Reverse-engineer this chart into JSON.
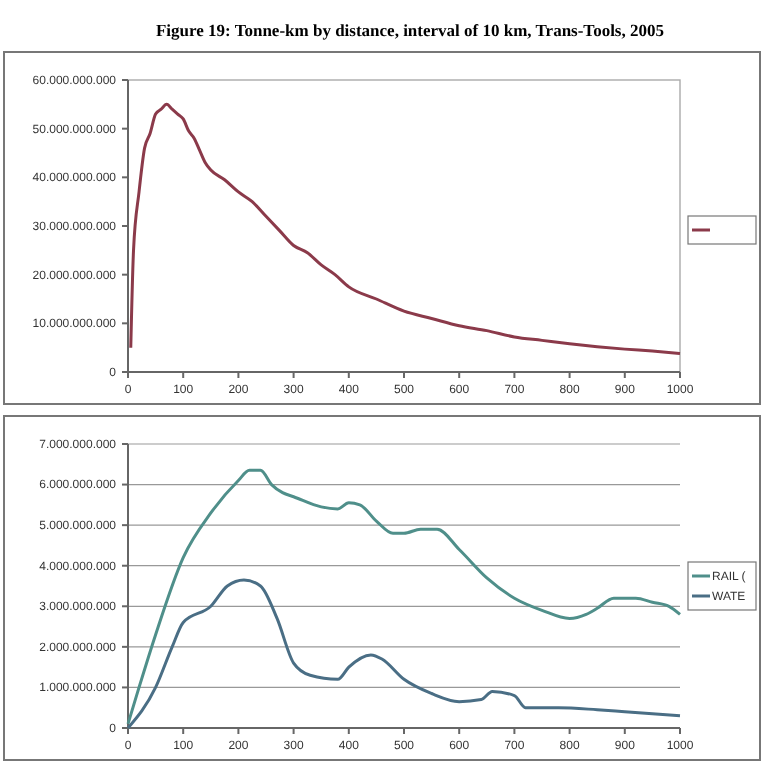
{
  "chart_data": [
    {
      "type": "line",
      "title": "Figure 19: Tonne-km by distance, interval of 10 km, Trans-Tools, 2005",
      "grid": false,
      "x": [
        5,
        10,
        20,
        30,
        40,
        50,
        60,
        70,
        80,
        90,
        100,
        110,
        120,
        130,
        140,
        150,
        175,
        200,
        225,
        250,
        275,
        300,
        325,
        350,
        375,
        400,
        450,
        500,
        550,
        600,
        650,
        700,
        750,
        800,
        850,
        900,
        950,
        1000
      ],
      "series": [
        {
          "color": "#8b3a4a",
          "values": [
            5000000000.0,
            25000000000.0,
            37000000000.0,
            46000000000.0,
            49000000000.0,
            53000000000.0,
            54000000000.0,
            55000000000.0,
            54000000000.0,
            53000000000.0,
            52000000000.0,
            49500000000.0,
            48000000000.0,
            45500000000.0,
            43000000000.0,
            41500000000.0,
            39500000000.0,
            37000000000.0,
            35000000000.0,
            32000000000.0,
            29000000000.0,
            26000000000.0,
            24500000000.0,
            22000000000.0,
            20000000000.0,
            17500000000.0,
            15000000000.0,
            12500000000.0,
            11000000000.0,
            9500000000.0,
            8500000000.0,
            7200000000.0,
            6500000000.0,
            5800000000.0,
            5200000000.0,
            4700000000.0,
            4300000000.0,
            3800000000.0
          ]
        }
      ],
      "xlim": [
        0,
        1000
      ],
      "xticks": [
        0,
        100,
        200,
        300,
        400,
        500,
        600,
        700,
        800,
        900,
        1000
      ],
      "ylim": [
        0,
        60000000000
      ],
      "yticks": [
        {
          "value": 0,
          "label": "0"
        },
        {
          "value": 10000000000,
          "label": "10.000.000.000"
        },
        {
          "value": 20000000000,
          "label": "20.000.000.000"
        },
        {
          "value": 30000000000,
          "label": "30.000.000.000"
        },
        {
          "value": 40000000000,
          "label": "40.000.000.000"
        },
        {
          "value": 50000000000,
          "label": "50.000.000.000"
        },
        {
          "value": 60000000000,
          "label": "60.000.000.000"
        }
      ]
    },
    {
      "type": "line",
      "legend": "right",
      "grid": "y",
      "series": [
        {
          "name": "RAIL (",
          "color": "#4f8f8a",
          "x": [
            0,
            20,
            50,
            100,
            150,
            200,
            220,
            240,
            260,
            280,
            300,
            350,
            380,
            400,
            420,
            450,
            480,
            500,
            530,
            560,
            600,
            650,
            700,
            750,
            800,
            830,
            850,
            880,
            920,
            950,
            980,
            1000
          ],
          "values": [
            100000000.0,
            1000000000.0,
            2300000000.0,
            4200000000.0,
            5300000000.0,
            6100000000.0,
            6350000000.0,
            6350000000.0,
            6000000000.0,
            5800000000.0,
            5700000000.0,
            5450000000.0,
            5400000000.0,
            5550000000.0,
            5500000000.0,
            5100000000.0,
            4800000000.0,
            4800000000.0,
            4900000000.0,
            4900000000.0,
            4400000000.0,
            3700000000.0,
            3200000000.0,
            2900000000.0,
            2700000000.0,
            2800000000.0,
            2950000000.0,
            3200000000.0,
            3200000000.0,
            3100000000.0,
            3000000000.0,
            2800000000.0
          ]
        },
        {
          "name": "WATE",
          "color": "#4a6e85",
          "x": [
            0,
            50,
            80,
            100,
            150,
            180,
            210,
            240,
            270,
            300,
            330,
            380,
            400,
            440,
            460,
            500,
            550,
            600,
            640,
            660,
            700,
            720,
            780,
            850,
            900,
            950,
            1000
          ],
          "values": [
            0,
            1000000000.0,
            2000000000.0,
            2600000000.0,
            3000000000.0,
            3500000000.0,
            3650000000.0,
            3500000000.0,
            2700000000.0,
            1600000000.0,
            1300000000.0,
            1200000000.0,
            1500000000.0,
            1800000000.0,
            1700000000.0,
            1200000000.0,
            850000000.0,
            650000000.0,
            700000000.0,
            900000000.0,
            800000000.0,
            500000000.0,
            500000000.0,
            450000000.0,
            400000000.0,
            350000000.0,
            300000000.0
          ]
        }
      ],
      "xlim": [
        0,
        1000
      ],
      "xticks": [
        0,
        100,
        200,
        300,
        400,
        500,
        600,
        700,
        800,
        900,
        1000
      ],
      "ylim": [
        0,
        7000000000
      ],
      "yticks": [
        {
          "value": 0,
          "label": "0"
        },
        {
          "value": 1000000000,
          "label": "1.000.000.000"
        },
        {
          "value": 2000000000,
          "label": "2.000.000.000"
        },
        {
          "value": 3000000000,
          "label": "3.000.000.000"
        },
        {
          "value": 4000000000,
          "label": "4.000.000.000"
        },
        {
          "value": 5000000000,
          "label": "5.000.000.000"
        },
        {
          "value": 6000000000,
          "label": "6.000.000.000"
        },
        {
          "value": 7000000000,
          "label": "7.000.000.000"
        }
      ]
    }
  ]
}
